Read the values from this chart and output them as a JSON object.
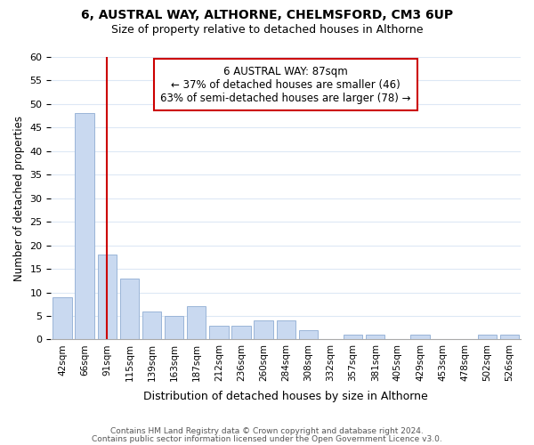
{
  "title": "6, AUSTRAL WAY, ALTHORNE, CHELMSFORD, CM3 6UP",
  "subtitle": "Size of property relative to detached houses in Althorne",
  "xlabel": "Distribution of detached houses by size in Althorne",
  "ylabel": "Number of detached properties",
  "bar_labels": [
    "42sqm",
    "66sqm",
    "91sqm",
    "115sqm",
    "139sqm",
    "163sqm",
    "187sqm",
    "212sqm",
    "236sqm",
    "260sqm",
    "284sqm",
    "308sqm",
    "332sqm",
    "357sqm",
    "381sqm",
    "405sqm",
    "429sqm",
    "453sqm",
    "478sqm",
    "502sqm",
    "526sqm"
  ],
  "bar_values": [
    9,
    48,
    18,
    13,
    6,
    5,
    7,
    3,
    3,
    4,
    4,
    2,
    0,
    1,
    1,
    0,
    1,
    0,
    0,
    1,
    1
  ],
  "bar_color": "#c9d9f0",
  "bar_edge_color": "#9ab5d8",
  "ylim": [
    0,
    60
  ],
  "yticks": [
    0,
    5,
    10,
    15,
    20,
    25,
    30,
    35,
    40,
    45,
    50,
    55,
    60
  ],
  "vline_x_index": 2,
  "vline_color": "#cc0000",
  "annotation_title": "6 AUSTRAL WAY: 87sqm",
  "annotation_line1": "← 37% of detached houses are smaller (46)",
  "annotation_line2": "63% of semi-detached houses are larger (78) →",
  "annotation_box_color": "#ffffff",
  "annotation_box_edge": "#cc0000",
  "footer1": "Contains HM Land Registry data © Crown copyright and database right 2024.",
  "footer2": "Contains public sector information licensed under the Open Government Licence v3.0.",
  "background_color": "#ffffff",
  "grid_color": "#dde8f5"
}
